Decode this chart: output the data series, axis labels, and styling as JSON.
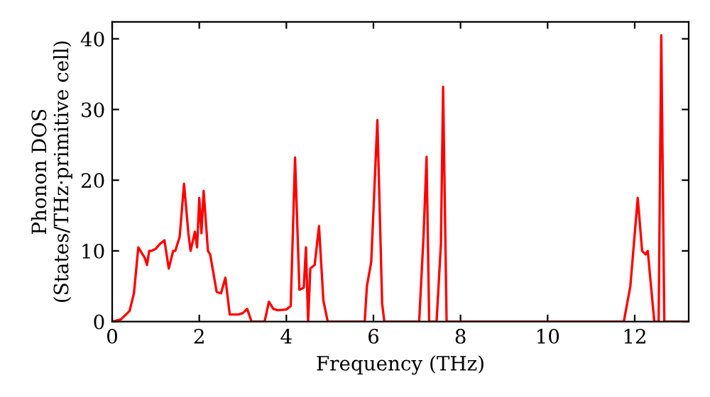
{
  "chart_data": {
    "type": "line",
    "xlabel": "Frequency (THz)",
    "ylabel": "Phonon DOS\n(States/THz·primitive cell)",
    "xlim": [
      0,
      13.24
    ],
    "ylim": [
      0,
      42.4
    ],
    "xticks": [
      0,
      2,
      4,
      6,
      8,
      10,
      12
    ],
    "yticks": [
      0,
      10,
      20,
      30,
      40
    ],
    "grid": false,
    "legend": false,
    "marker": "none",
    "line_style": "solid",
    "series": [
      {
        "color": "#ff0000",
        "x": [
          0,
          0.2,
          0.4,
          0.5,
          0.6,
          0.75,
          0.8,
          0.85,
          0.9,
          1.0,
          1.1,
          1.2,
          1.3,
          1.4,
          1.45,
          1.55,
          1.65,
          1.75,
          1.8,
          1.9,
          1.95,
          2.0,
          2.05,
          2.1,
          2.2,
          2.25,
          2.4,
          2.5,
          2.6,
          2.7,
          2.9,
          3.0,
          3.1,
          3.2,
          3.5,
          3.6,
          3.7,
          3.8,
          4.0,
          4.1,
          4.2,
          4.3,
          4.4,
          4.45,
          4.5,
          4.55,
          4.65,
          4.75,
          4.85,
          4.95,
          5.8,
          5.85,
          5.95,
          6.09,
          6.2,
          6.25,
          7.05,
          7.15,
          7.22,
          7.28,
          7.45,
          7.55,
          7.6,
          7.68,
          11.75,
          11.9,
          12.07,
          12.17,
          12.25,
          12.3,
          12.45,
          12.55,
          12.61,
          12.68,
          13.24
        ],
        "values": [
          0,
          0.3,
          1.5,
          4,
          10.5,
          9,
          8,
          10,
          10,
          10.3,
          11,
          11.5,
          7.5,
          10,
          10,
          12,
          19.5,
          12.5,
          10,
          12.7,
          10.5,
          17.5,
          12.5,
          18.5,
          10,
          9.5,
          4.2,
          4,
          6.2,
          1,
          1,
          1.2,
          1.8,
          0,
          0,
          2.8,
          1.8,
          1.6,
          1.7,
          2.2,
          23.2,
          4.5,
          4.8,
          10.5,
          0,
          7.5,
          8,
          13.5,
          3,
          0,
          0,
          5,
          8.5,
          28.5,
          2.5,
          0,
          0,
          12,
          23.3,
          0,
          0,
          11,
          33.2,
          0,
          0,
          5,
          17.5,
          10,
          9.5,
          10,
          0,
          0,
          40.5,
          0,
          0
        ]
      }
    ]
  }
}
